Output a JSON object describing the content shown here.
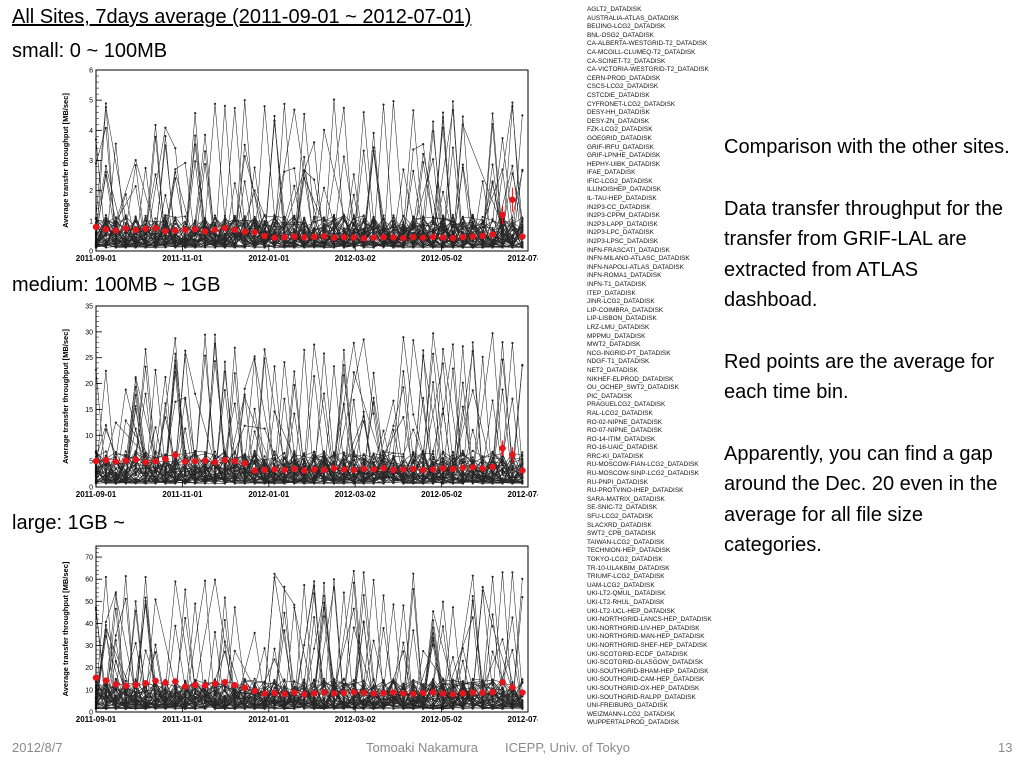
{
  "slide": {
    "title": "All Sites, 7days average (2011-09-01 ~ 2012-07-01)",
    "notes": [
      "Comparison with the other sites.",
      "Data transfer throughput for the transfer from GRIF-LAL are extracted from ATLAS dashboad.",
      "Red points are the average for each time bin.",
      "Apparently, you can find a gap around the Dec. 20 even in the average for all file size categories."
    ],
    "footer": {
      "date": "2012/8/7",
      "presenter": "Tomoaki Nakamura",
      "affiliation": "ICEPP, Univ. of Tokyo",
      "page": "13"
    }
  },
  "sites": [
    "AGLT2_DATADISK",
    "AUSTRALIA-ATLAS_DATADISK",
    "BEIJING-LCG2_DATADISK",
    "BNL-OSG2_DATADISK",
    "CA-ALBERTA-WESTGRID-T2_DATADISK",
    "CA-MCGILL-CLUMEQ-T2_DATADISK",
    "CA-SCINET-T2_DATADISK",
    "CA-VICTORIA-WESTGRID-T2_DATADISK",
    "CERN-PROD_DATADISK",
    "CSCS-LCG2_DATADISK",
    "CSTCDIE_DATADISK",
    "CYFRONET-LCG2_DATADISK",
    "DESY-HH_DATADISK",
    "DESY-ZN_DATADISK",
    "FZK-LCG2_DATADISK",
    "GOEGRID_DATADISK",
    "GRIF-IRFU_DATADISK",
    "GRIF-LPNHE_DATADISK",
    "HEPHY-UIBK_DATADISK",
    "IFAE_DATADISK",
    "IFIC-LCG2_DATADISK",
    "ILLINOISHEP_DATADISK",
    "IL-TAU-HEP_DATADISK",
    "IN2P3-CC_DATADISK",
    "IN2P3-CPPM_DATADISK",
    "IN2P3-LAPP_DATADISK",
    "IN2P3-LPC_DATADISK",
    "IN2P3-LPSC_DATADISK",
    "INFN-FRASCATI_DATADISK",
    "INFN-MILANO-ATLASC_DATADISK",
    "INFN-NAPOLI-ATLAS_DATADISK",
    "INFN-ROMA1_DATADISK",
    "INFN-T1_DATADISK",
    "ITEP_DATADISK",
    "JINR-LCG2_DATADISK",
    "LIP-COIMBRA_DATADISK",
    "LIP-LISBON_DATADISK",
    "LRZ-LMU_DATADISK",
    "MPPMU_DATADISK",
    "MWT2_DATADISK",
    "NCG-INGRID-PT_DATADISK",
    "NDGF-T1_DATADISK",
    "NET2_DATADISK",
    "NIKHEF-ELPROD_DATADISK",
    "OU_OCHEP_SWT2_DATADISK",
    "PIC_DATADISK",
    "PRAGUELCG2_DATADISK",
    "RAL-LCG2_DATADISK",
    "RO-02-NIPNE_DATADISK",
    "RO-07-NIPNE_DATADISK",
    "RO-14-ITIM_DATADISK",
    "RO-16-UAIC_DATADISK",
    "RRC-KI_DATADISK",
    "RU-MOSCOW-FIAN-LCG2_DATADISK",
    "RU-MOSCOW-SINP-LCG2_DATADISK",
    "RU-PNPI_DATADISK",
    "RU-PROTVINO-IHEP_DATADISK",
    "SARA-MATRIX_DATADISK",
    "SE-SNIC-T2_DATADISK",
    "SFU-LCG2_DATADISK",
    "SLACXRD_DATADISK",
    "SWT2_CPB_DATADISK",
    "TAIWAN-LCG2_DATADISK",
    "TECHNION-HEP_DATADISK",
    "TOKYO-LCG2_DATADISK",
    "TR-10-ULAKBIM_DATADISK",
    "TRIUMF-LCG2_DATADISK",
    "UAM-LCG2_DATADISK",
    "UKI-LT2-QMUL_DATADISK",
    "UKI-LT2-RHUL_DATADISK",
    "UKI-LT2-UCL-HEP_DATADISK",
    "UKI-NORTHGRID-LANCS-HEP_DATADISK",
    "UKI-NORTHGRID-LIV-HEP_DATADISK",
    "UKI-NORTHGRID-MAN-HEP_DATADISK",
    "UKI-NORTHGRID-SHEF-HEP_DATADISK",
    "UKI-SCOTGRID-ECDF_DATADISK",
    "UKI-SCOTGRID-GLASGOW_DATADISK",
    "UKI-SOUTHGRID-BHAM-HEP_DATADISK",
    "UKI-SOUTHGRID-CAM-HEP_DATADISK",
    "UKI-SOUTHGRID-OX-HEP_DATADISK",
    "UKI-SOUTHGRID-RALPP_DATADISK",
    "UNI-FREIBURG_DATADISK",
    "WEIZMANN-LCG2_DATADISK",
    "WUPPERTALPROD_DATADISK"
  ],
  "colors": {
    "average": "#e8141b",
    "sites": "#000000",
    "axis": "#000000"
  },
  "chart_data": [
    {
      "type": "line",
      "category": "small: 0 ~ 100MB",
      "ylabel": "Average transfer throughput [MB/sec]",
      "xlabel": "",
      "xticks": [
        "2011-09-01",
        "2011-11-01",
        "2012-01-01",
        "2012-03-02",
        "2012-05-02",
        "2012-07-02"
      ],
      "xlim": [
        "2011-09-01",
        "2012-07-02"
      ],
      "ylim": [
        0,
        6
      ],
      "yticks": [
        0,
        1,
        2,
        3,
        4,
        5,
        6
      ],
      "series": [
        {
          "x": [
            "2011-09-01",
            "2011-09-08",
            "2011-09-15",
            "2011-09-22",
            "2011-09-29",
            "2011-10-06",
            "2011-10-13",
            "2011-10-20",
            "2011-10-27",
            "2011-11-03",
            "2011-11-10",
            "2011-11-17",
            "2011-11-24",
            "2011-12-01",
            "2011-12-08",
            "2011-12-15",
            "2011-12-22",
            "2011-12-29",
            "2012-01-05",
            "2012-01-12",
            "2012-01-19",
            "2012-01-26",
            "2012-02-02",
            "2012-02-09",
            "2012-02-16",
            "2012-02-23",
            "2012-03-01",
            "2012-03-08",
            "2012-03-15",
            "2012-03-22",
            "2012-03-29",
            "2012-04-05",
            "2012-04-12",
            "2012-04-19",
            "2012-04-26",
            "2012-05-03",
            "2012-05-10",
            "2012-05-17",
            "2012-05-24",
            "2012-05-31",
            "2012-06-07",
            "2012-06-14",
            "2012-06-21",
            "2012-06-28"
          ],
          "values": [
            0.8,
            0.72,
            0.68,
            0.75,
            0.7,
            0.74,
            0.76,
            0.66,
            0.68,
            0.7,
            0.72,
            0.65,
            0.7,
            0.76,
            0.7,
            0.64,
            0.62,
            0.5,
            0.44,
            0.46,
            0.48,
            0.45,
            0.47,
            0.49,
            0.44,
            0.46,
            0.45,
            0.42,
            0.44,
            0.46,
            0.45,
            0.43,
            0.46,
            0.44,
            0.47,
            0.45,
            0.43,
            0.46,
            0.48,
            0.5,
            0.55,
            1.2,
            1.7,
            0.48
          ],
          "errors": [
            0,
            0,
            0,
            0,
            0,
            0,
            0,
            0,
            0,
            0,
            0,
            0,
            0,
            0,
            0,
            0,
            0,
            0,
            0,
            0,
            0,
            0,
            0,
            0,
            0,
            0,
            0,
            0,
            0,
            0,
            0,
            0,
            0,
            0,
            0,
            0,
            0,
            0,
            0,
            0,
            0,
            0.3,
            0.4,
            0
          ]
        }
      ]
    },
    {
      "type": "line",
      "category": "medium: 100MB ~ 1GB",
      "ylabel": "Average transfer throughput [MB/sec]",
      "xlabel": "",
      "xticks": [
        "2011-09-01",
        "2011-11-01",
        "2012-01-01",
        "2012-03-02",
        "2012-05-02",
        "2012-07-02"
      ],
      "xlim": [
        "2011-09-01",
        "2012-07-02"
      ],
      "ylim": [
        0,
        35
      ],
      "yticks": [
        0,
        5,
        10,
        15,
        20,
        25,
        30,
        35
      ],
      "series": [
        {
          "x": [
            "2011-09-01",
            "2011-09-08",
            "2011-09-15",
            "2011-09-22",
            "2011-09-29",
            "2011-10-06",
            "2011-10-13",
            "2011-10-20",
            "2011-10-27",
            "2011-11-03",
            "2011-11-10",
            "2011-11-17",
            "2011-11-24",
            "2011-12-01",
            "2011-12-08",
            "2011-12-15",
            "2011-12-22",
            "2011-12-29",
            "2012-01-05",
            "2012-01-12",
            "2012-01-19",
            "2012-01-26",
            "2012-02-02",
            "2012-02-09",
            "2012-02-16",
            "2012-02-23",
            "2012-03-01",
            "2012-03-08",
            "2012-03-15",
            "2012-03-22",
            "2012-03-29",
            "2012-04-05",
            "2012-04-12",
            "2012-04-19",
            "2012-04-26",
            "2012-05-03",
            "2012-05-10",
            "2012-05-17",
            "2012-05-24",
            "2012-05-31",
            "2012-06-07",
            "2012-06-14",
            "2012-06-21",
            "2012-06-28"
          ],
          "values": [
            5.0,
            5.2,
            4.9,
            5.1,
            5.3,
            4.8,
            5.0,
            5.4,
            6.2,
            4.9,
            5.0,
            5.1,
            4.8,
            5.2,
            5.0,
            4.6,
            3.2,
            3.3,
            3.4,
            3.3,
            3.5,
            3.2,
            3.4,
            3.3,
            3.6,
            3.4,
            3.3,
            3.5,
            3.4,
            3.6,
            3.3,
            3.4,
            3.5,
            3.3,
            3.4,
            3.6,
            3.5,
            3.7,
            3.8,
            3.6,
            3.9,
            7.5,
            6.2,
            3.2
          ],
          "errors": [
            0,
            0,
            0,
            0,
            0,
            0,
            0,
            0,
            0,
            0,
            0,
            0,
            0,
            0,
            0,
            0,
            0,
            0,
            0,
            0,
            0,
            0,
            0,
            0,
            0,
            0,
            0,
            0,
            0,
            0,
            0,
            0,
            0,
            0,
            0,
            0,
            0,
            0,
            0,
            0,
            0,
            1.5,
            1.5,
            0
          ]
        }
      ]
    },
    {
      "type": "line",
      "category": "large: 1GB ~",
      "ylabel": "Average transfer throughput [MB/sec]",
      "xlabel": "",
      "xticks": [
        "2011-09-01",
        "2011-11-01",
        "2012-01-01",
        "2012-03-02",
        "2012-05-02",
        "2012-07-02"
      ],
      "xlim": [
        "2011-09-01",
        "2012-07-02"
      ],
      "ylim": [
        0,
        75
      ],
      "yticks": [
        0,
        10,
        20,
        30,
        40,
        50,
        60,
        70
      ],
      "series": [
        {
          "x": [
            "2011-09-01",
            "2011-09-08",
            "2011-09-15",
            "2011-09-22",
            "2011-09-29",
            "2011-10-06",
            "2011-10-13",
            "2011-10-20",
            "2011-10-27",
            "2011-11-03",
            "2011-11-10",
            "2011-11-17",
            "2011-11-24",
            "2011-12-01",
            "2011-12-08",
            "2011-12-15",
            "2011-12-22",
            "2011-12-29",
            "2012-01-05",
            "2012-01-12",
            "2012-01-19",
            "2012-01-26",
            "2012-02-02",
            "2012-02-09",
            "2012-02-16",
            "2012-02-23",
            "2012-03-01",
            "2012-03-08",
            "2012-03-15",
            "2012-03-22",
            "2012-03-29",
            "2012-04-05",
            "2012-04-12",
            "2012-04-19",
            "2012-04-26",
            "2012-05-03",
            "2012-05-10",
            "2012-05-17",
            "2012-05-24",
            "2012-05-31",
            "2012-06-07",
            "2012-06-14",
            "2012-06-21",
            "2012-06-28"
          ],
          "values": [
            15.5,
            14.2,
            12.5,
            11.8,
            12.3,
            13.0,
            14.1,
            13.2,
            13.8,
            11.5,
            12.2,
            12.0,
            12.8,
            13.5,
            12.1,
            11.0,
            9.5,
            8.3,
            8.6,
            8.2,
            8.8,
            8.0,
            8.5,
            8.9,
            8.4,
            8.6,
            9.0,
            8.7,
            8.3,
            8.5,
            8.8,
            8.4,
            8.2,
            8.6,
            8.9,
            8.3,
            8.0,
            8.5,
            8.8,
            8.7,
            9.0,
            13.5,
            11.2,
            8.8
          ],
          "errors": [
            0,
            0,
            0,
            0,
            0,
            0,
            0,
            0,
            0,
            0,
            0,
            0,
            0,
            0,
            0,
            0,
            0,
            0,
            0,
            0,
            0,
            0,
            0,
            0,
            0,
            0,
            0,
            0,
            0,
            0,
            0,
            0,
            0,
            0,
            0,
            0,
            0,
            0,
            0,
            0,
            0,
            0,
            0,
            0
          ]
        }
      ]
    }
  ]
}
